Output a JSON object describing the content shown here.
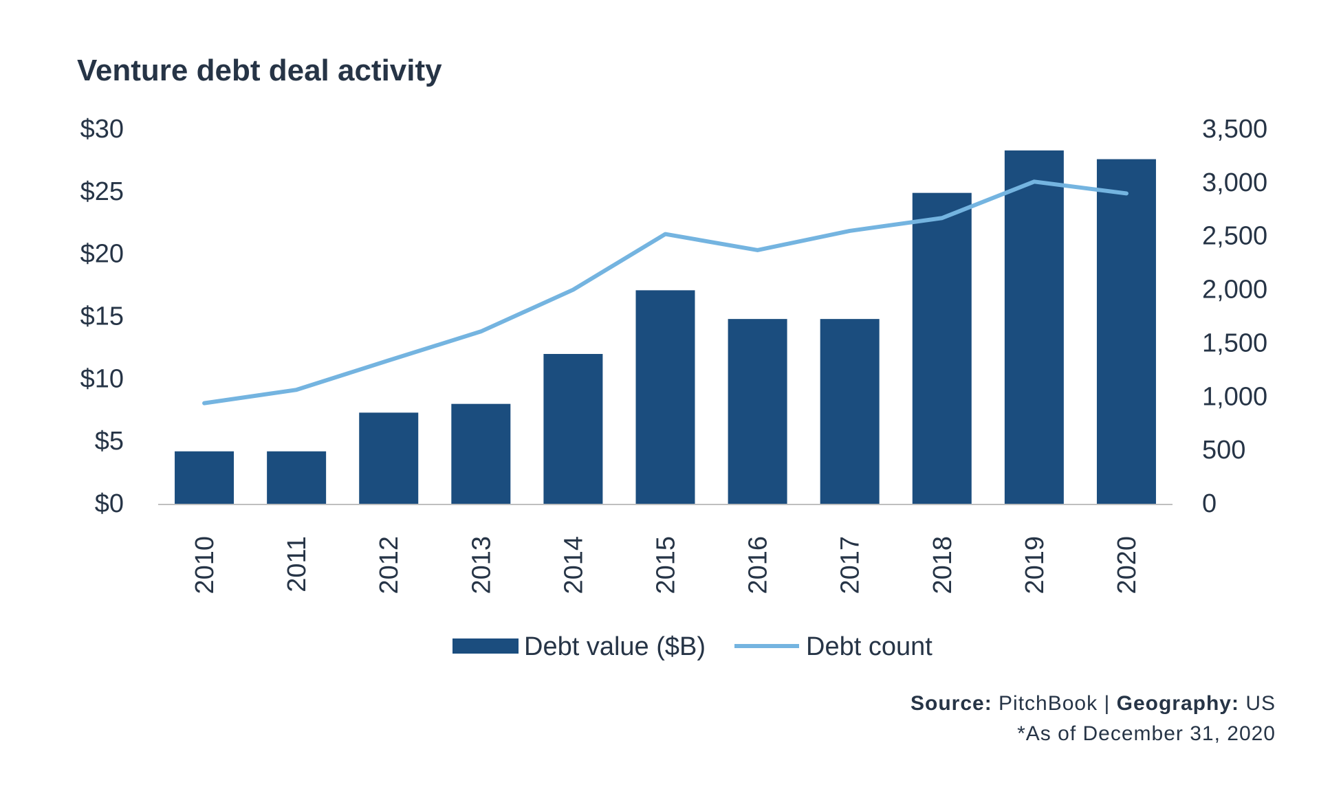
{
  "chart_data": {
    "type": "bar",
    "title": "Venture debt deal activity",
    "categories": [
      "2010",
      "2011",
      "2012",
      "2013",
      "2014",
      "2015",
      "2016",
      "2017",
      "2018",
      "2019",
      "2020"
    ],
    "series": [
      {
        "name": "Debt value ($B)",
        "type": "bar",
        "axis": "left",
        "color": "#1b4d7e",
        "values": [
          4.2,
          4.2,
          7.3,
          8.0,
          12.0,
          17.1,
          14.8,
          14.8,
          24.9,
          28.3,
          27.6
        ]
      },
      {
        "name": "Debt count",
        "type": "line",
        "axis": "right",
        "color": "#74b4e0",
        "values": [
          940,
          1065,
          1340,
          1610,
          2000,
          2520,
          2370,
          2550,
          2670,
          3010,
          2900
        ]
      }
    ],
    "y_left": {
      "min": 0,
      "max": 30,
      "ticks": [
        0,
        5,
        10,
        15,
        20,
        25,
        30
      ],
      "tick_labels": [
        "$0",
        "$5",
        "$10",
        "$15",
        "$20",
        "$25",
        "$30"
      ]
    },
    "y_right": {
      "min": 0,
      "max": 3500,
      "ticks": [
        0,
        500,
        1000,
        1500,
        2000,
        2500,
        3000,
        3500
      ],
      "tick_labels": [
        "0",
        "500",
        "1,000",
        "1,500",
        "2,000",
        "2,500",
        "3,000",
        "3,500"
      ]
    },
    "grid": false,
    "legend_position": "bottom-center"
  },
  "footer": {
    "source_label": "Source:",
    "source_value": "PitchBook",
    "separator": "|",
    "geography_label": "Geography:",
    "geography_value": "US",
    "note": "*As of December 31, 2020"
  }
}
